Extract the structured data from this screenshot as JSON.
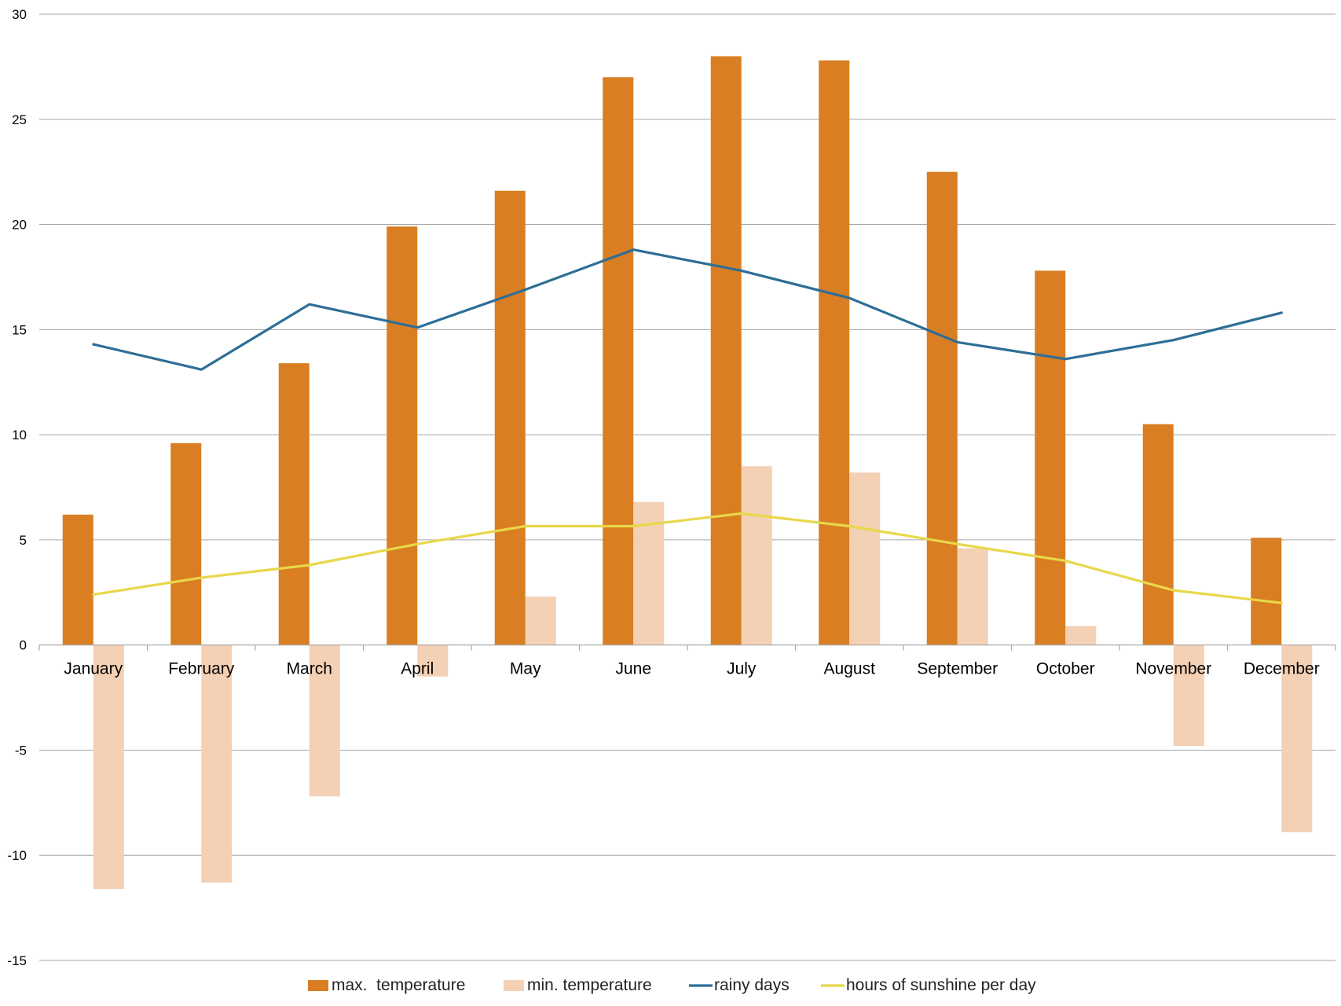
{
  "chart_data": {
    "type": "bar",
    "title": "",
    "xlabel": "",
    "ylabel": "",
    "ylim": [
      -15,
      30
    ],
    "yticks": [
      30,
      25,
      20,
      15,
      10,
      5,
      0,
      -5,
      -10,
      -15
    ],
    "grid": true,
    "legend_position": "bottom",
    "categories": [
      "January",
      "February",
      "March",
      "April",
      "May",
      "June",
      "July",
      "August",
      "September",
      "October",
      "November",
      "December"
    ],
    "series": [
      {
        "name": "max.  temperature",
        "kind": "bar",
        "color": "#d97e22",
        "values": [
          6.2,
          9.6,
          13.4,
          19.9,
          21.6,
          27.0,
          28.0,
          27.8,
          22.5,
          17.8,
          10.5,
          5.1
        ]
      },
      {
        "name": "min. temperature",
        "kind": "bar",
        "color": "#f4d0b4",
        "values": [
          -11.6,
          -11.3,
          -7.2,
          -1.5,
          2.3,
          6.8,
          8.5,
          8.2,
          4.6,
          0.9,
          -4.8,
          -8.9
        ]
      },
      {
        "name": "rainy days",
        "kind": "line",
        "color": "#2e6e96",
        "values": [
          14.3,
          13.1,
          16.2,
          15.1,
          16.9,
          18.8,
          17.8,
          16.5,
          14.4,
          13.6,
          14.5,
          15.8
        ]
      },
      {
        "name": "hours of sunshine per day",
        "kind": "line",
        "color": "#e8d84a",
        "values": [
          2.4,
          3.2,
          3.8,
          4.8,
          5.65,
          5.65,
          6.25,
          5.65,
          4.8,
          4.0,
          2.6,
          2.0
        ]
      }
    ]
  }
}
